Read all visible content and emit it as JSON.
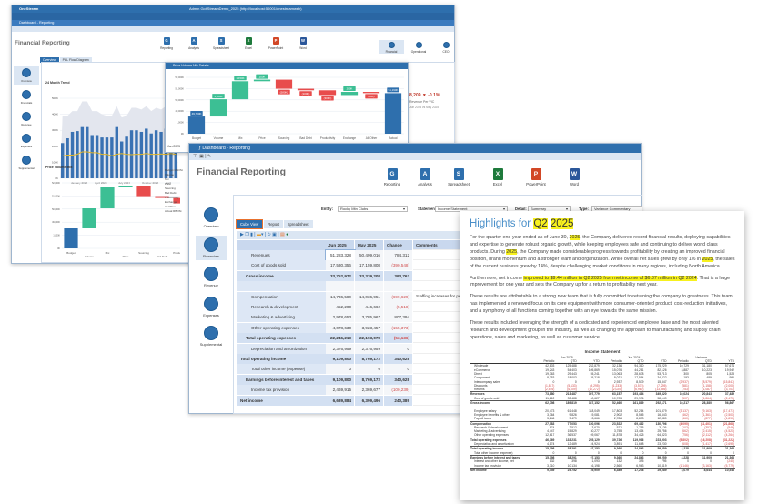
{
  "back_window": {
    "app_name": "OneStream",
    "title": "Admin GolfStreamDemo_2025 (http://localhost:50001/onestreamweb)",
    "dashboard_title": "Dashboard - Reporting",
    "page_title": "Financial Reporting",
    "ribbon": [
      "Reporting",
      "Analysis",
      "Spreadsheet",
      "Excel",
      "PowerPoint",
      "Word"
    ],
    "views": [
      "Financial",
      "Operational",
      "CEO"
    ],
    "tabs": [
      "Overview",
      "P&L Flow Diagram"
    ],
    "nav": [
      "Overview",
      "Financials",
      "Revenue",
      "Expenses",
      "Supplemental"
    ],
    "trend_title": "24 Month Trend",
    "trend_yticks": [
      "0K",
      "100K",
      "200K",
      "300K",
      "400K",
      "500K"
    ],
    "trend_xticks": [
      "January 2024",
      "April 2024",
      "July 2024",
      "October 2024",
      "April"
    ],
    "trend_bars": [
      220,
      250,
      290,
      295,
      320,
      320,
      270,
      270,
      255,
      255,
      255,
      320,
      230,
      260,
      300,
      300,
      290,
      310,
      280,
      300,
      290,
      310,
      300,
      320
    ],
    "trend_line": [
      140,
      145,
      145,
      150,
      165,
      165,
      160,
      160,
      150,
      150,
      140,
      150,
      155,
      150,
      148,
      150,
      150,
      155,
      150,
      150,
      152,
      150,
      155,
      150
    ],
    "trend_area": [
      390,
      390,
      420,
      420,
      480,
      480,
      420,
      420,
      400,
      390,
      390,
      450,
      380,
      390,
      440,
      440,
      430,
      450,
      420,
      440,
      430,
      450,
      440,
      460
    ],
    "pvm_title": "Price Volume Mix",
    "pvm_yticks": [
      "0K",
      "1,000K",
      "49,000K",
      "50,000K",
      "51,000K",
      "52,000K"
    ],
    "kpi_value": "8,209",
    "kpi_change": "-0.1%",
    "kpi_label": "Revenue Per VIC",
    "kpi_sub": "Jun 2025 vs May 2025"
  },
  "popup": {
    "title": "Price Volume Mix Details",
    "yticks": [
      "0K",
      "1,000K",
      "49,000K",
      "50,000K",
      "51,000K",
      "52,000K"
    ],
    "period": "Jun 2025",
    "chart_data": {
      "type": "waterfall",
      "categories": [
        "Budget",
        "Volume",
        "Mix",
        "Price",
        "Sourcing",
        "Bad Debt",
        "Productivity",
        "Exchange",
        "All Other",
        "Actual"
      ],
      "values": [
        49700,
        1100,
        1150,
        100,
        -580,
        -100,
        -300,
        200,
        -80,
        51190
      ],
      "labels": [
        "49,700K",
        "1,100K",
        "1,150K",
        "100K",
        "(580K)",
        "(100K)",
        "(300K)",
        "200K",
        "(80K)",
        "51,190K"
      ]
    },
    "side_list": [
      "Budget RBOSt",
      "Volume",
      "Mix",
      "Price",
      "Sourcing",
      "Bad Debt",
      "Productivity",
      "Exchange",
      "All Other",
      "Actual RBOSt"
    ]
  },
  "front_window": {
    "title": "Dashboard - Reporting",
    "page_title": "Financial Reporting",
    "ribbon": [
      "Reporting",
      "Analysis",
      "Spreadsheet",
      "Excel",
      "PowerPoint",
      "Word"
    ],
    "nav": [
      "Overview",
      "Financials",
      "Revenue",
      "Expenses",
      "Supplemental"
    ],
    "filters": {
      "entity_label": "Entity:",
      "entity": "Rocky Mtn Clubs",
      "statement_label": "Statement:",
      "statement": "Income Statement",
      "detail_label": "Detail:",
      "detail": "Summary",
      "type_label": "Type:",
      "type": "Variance Commentary"
    },
    "tabs": [
      "Cube View",
      "Report",
      "Spreadsheet"
    ],
    "columns": [
      "Jun 2025",
      "May 2025",
      "Change",
      "Comments"
    ],
    "rows": [
      {
        "label": "Revenues",
        "v": [
          "51,283,328",
          "50,499,016",
          "784,312"
        ],
        "c": "",
        "lvl": 2
      },
      {
        "label": "Cost of goods sold",
        "v": [
          "17,530,356",
          "17,159,808",
          "(390,548)"
        ],
        "c": "",
        "lvl": 2
      },
      {
        "label": "Gross income",
        "v": [
          "33,752,972",
          "33,339,208",
          "393,763"
        ],
        "c": "",
        "lvl": 1,
        "bold": true
      },
      {
        "label": "",
        "v": [
          "",
          "",
          ""
        ],
        "c": "",
        "lvl": 2
      },
      {
        "label": "Compensation",
        "v": [
          "14,736,580",
          "14,036,951",
          "(699,629)"
        ],
        "c": "Staffing increases for peak",
        "lvl": 2
      },
      {
        "label": "Research & development",
        "v": [
          "452,200",
          "446,662",
          "(5,518)"
        ],
        "c": "",
        "lvl": 2
      },
      {
        "label": "Marketing & advertising",
        "v": [
          "2,978,653",
          "3,785,967",
          "807,394"
        ],
        "c": "",
        "lvl": 2
      },
      {
        "label": "Other operating expenses",
        "v": [
          "4,078,630",
          "3,923,457",
          "(155,373)"
        ],
        "c": "",
        "lvl": 2
      },
      {
        "label": "Total operating expenses",
        "v": [
          "22,246,213",
          "22,193,078",
          "(53,136)"
        ],
        "c": "",
        "lvl": 1,
        "bold": true
      },
      {
        "label": "Depreciation and amortization",
        "v": [
          "2,376,959",
          "2,376,959",
          "0"
        ],
        "c": "",
        "lvl": 2
      },
      {
        "label": "Total operating income",
        "v": [
          "9,109,800",
          "8,769,172",
          "340,628"
        ],
        "c": "",
        "lvl": 0,
        "bold": true
      },
      {
        "label": "Total other income (expense)",
        "v": [
          "0",
          "0",
          "0"
        ],
        "c": "",
        "lvl": 2
      },
      {
        "label": "Earnings before interest and taxes",
        "v": [
          "9,109,800",
          "8,769,172",
          "340,628"
        ],
        "c": "",
        "lvl": 1,
        "bold": true
      },
      {
        "label": "Income tax provision",
        "v": [
          "2,469,915",
          "2,369,677",
          "(100,239)"
        ],
        "c": "",
        "lvl": 2
      },
      {
        "label": "Net income",
        "v": [
          "6,639,884",
          "6,399,496",
          "240,389"
        ],
        "c": "",
        "lvl": 0,
        "bold": true
      }
    ]
  },
  "document": {
    "title_a": "Highlights for ",
    "title_b": "Q2",
    "title_c": "2025",
    "p1": [
      "For the quarter end year ended as of June 30, ",
      "2025",
      ", the Company delivered record financial results, deploying capabilities and expertise to generate robust organic growth, while keeping employees safe and continuing to deliver world class products.  During ",
      "2025",
      ", the Company made considerable progress towards profitability by creating an improved financial position, brand momentum and a stronger team and organization.  While overall net sales grew by only 1% in ",
      "2025",
      ", the sales of the current business grew by 14%, despite challenging market conditions in many regions, including North America."
    ],
    "p2": [
      "Furthermore, net income ",
      "improved to $9.44 million in Q2 2025 from net income of $6.37 million in Q2 2024",
      ". That is a huge improvement for one year and sets the Company up for a return to profitability next year."
    ],
    "p3": "These results are attributable to a strong new team that is fully committed to returning the company to greatness.  This team has implemented a renewed focus on its core equipment with more consumer-oriented product, cost-reduction initiatives, and a symphony of all functions coming together with an eye towards the same mission.",
    "p4": "These results included leveraging the strength of a dedicated and experienced employee base and the most talented research and development group in the industry, as well as changing the approach to manufacturing and supply chain operations, sales and marketing, as well as customer service.",
    "table_title": "Income Statement",
    "groups": [
      "Jun 2025",
      "Jun 2024",
      "Variance"
    ],
    "subcols": [
      "Periodic",
      "QTD",
      "YTD"
    ],
    "rows": [
      [
        "Wholesale",
        "42,803",
        "125,488",
        "232,879",
        "32,136",
        "94,310",
        "175,229",
        "10,729",
        "31,180",
        "57,674"
      ],
      [
        "eCommerce",
        "19,243",
        "54,403",
        "105,869",
        "15,076",
        "44,281",
        "82,126",
        "3,887",
        "10,223",
        "19,942"
      ],
      [
        "Direct",
        "19,363",
        "29,443",
        "55,241",
        "13,063",
        "28,638",
        "53,713",
        "300",
        "805",
        "1,528"
      ],
      [
        "Component",
        "8,353",
        "18,003",
        "35,218",
        "8,021",
        "17,594",
        "34,222",
        "193",
        "489",
        "996"
      ],
      [
        "Intercompany sales",
        "0",
        "0",
        "0",
        "2,937",
        "8,579",
        "15,847",
        "(2,937)",
        "(8,579)",
        "(15,847)"
      ],
      [
        "Discounts",
        "(1,817)",
        "(5,133)",
        "(9,295)",
        "(1,233)",
        "(3,578)",
        "(7,295)",
        "(581)",
        "(1,158)",
        "(2,000)"
      ],
      [
        "Returns",
        "(2,576)",
        "(6,009)",
        "(17,272)",
        "(2,020)",
        "(6,962)",
        "(13,556)",
        "(753)",
        "(1,087)",
        "(3,703)"
      ],
      [
        "Revenues",
        "73,880",
        "213,487",
        "397,779",
        "63,157",
        "193,484",
        "349,320",
        "10,024",
        "20,843",
        "37,489"
      ],
      [
        "Cost of goods sold",
        "11,212",
        "33,488",
        "60,627",
        "10,705",
        "29,996",
        "58,149",
        "(507)",
        "(1,864)",
        "(2,477)"
      ],
      [
        "Gross income",
        "62,798",
        "189,819",
        "337,152",
        "52,460",
        "161,889",
        "292,171",
        "10,217",
        "28,380",
        "56,867"
      ],
      [
        "",
        "",
        "",
        "",
        "",
        "",
        "",
        "",
        "",
        ""
      ],
      [
        "Employee salary",
        "20,473",
        "61,448",
        "118,049",
        "17,803",
        "52,284",
        "101,379",
        "(3,137)",
        "(9,163)",
        "(17,471)"
      ],
      [
        "Employee benefits & other",
        "3,364",
        "9,826",
        "19,081",
        "2,902",
        "8,565",
        "16,543",
        "(462)",
        "(1,361)",
        "(2,501)"
      ],
      [
        "Payroll taxes",
        "3,246",
        "9,479",
        "13,666",
        "2,786",
        "8,833",
        "12,880",
        "(460)",
        "(877)",
        "(1,890)"
      ],
      [
        "Compensation",
        "27,083",
        "77,053",
        "150,096",
        "23,522",
        "69,482",
        "130,796",
        "(4,090)",
        "(11,401)",
        "(21,868)"
      ],
      [
        "Research & development",
        "874",
        "2,512",
        "3,670",
        "571",
        "1,755",
        "3,126",
        "(103)",
        "(357)",
        "(546)"
      ],
      [
        "Marketing & advertising",
        "4,447",
        "15,829",
        "30,277",
        "3,755",
        "13,414",
        "25,756",
        "(662)",
        "(2,415)",
        "(4,521)"
      ],
      [
        "Other operating expenses",
        "12,617",
        "36,537",
        "69,067",
        "11,878",
        "34,425",
        "64,823",
        "(756)",
        "(2,112)",
        "(4,264)"
      ],
      [
        "Total operating expenses",
        "46,369",
        "133,231",
        "255,129",
        "39,726",
        "119,986",
        "223,903",
        "(5,802)",
        "(16,208)",
        "(31,222)"
      ],
      [
        "Depreciation and amortization",
        "4,174",
        "12,489",
        "24,924",
        "3,891",
        "11,668",
        "23,230",
        "(608)",
        "(1,417)",
        "(2,695)"
      ],
      [
        "Total operating income",
        "15,398",
        "38,291",
        "97,153",
        "9,360",
        "24,863",
        "59,259",
        "4,228",
        "11,909",
        "21,368"
      ],
      [
        "Total other income (expense)",
        "0",
        "0",
        "0",
        "0",
        "0",
        "0",
        "0",
        "0",
        "0"
      ],
      [
        "Earnings before interest and taxes",
        "15,398",
        "38,291",
        "97,153",
        "9,360",
        "24,863",
        "59,259",
        "4,228",
        "11,909",
        "21,368"
      ],
      [
        "Interest and other income, net",
        "132",
        "398",
        "1,093",
        "132",
        "395",
        "795",
        "0",
        "0",
        "(240)"
      ],
      [
        "Income tax provision",
        "3,710",
        "10,134",
        "16,198",
        "2,560",
        "6,963",
        "10,419",
        "(1,146)",
        "(3,163)",
        "(5,779)"
      ],
      [
        "Net income",
        "9,449",
        "25,752",
        "39,909",
        "6,389",
        "17,208",
        "29,089",
        "3,079",
        "8,644",
        "10,548"
      ]
    ]
  },
  "colors": {
    "brand": "#2e6fad",
    "up": "#3cbf94",
    "down": "#e84c4c",
    "highlight": "#f7f11e",
    "title": "#4a8fc9"
  }
}
